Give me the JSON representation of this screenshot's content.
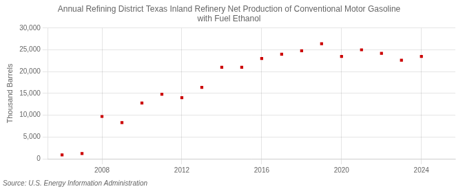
{
  "chart_data": {
    "type": "scatter",
    "title": "Annual Refining District Texas Inland Refinery Net Production of Conventional Motor Gasoline\nwith Fuel Ethanol",
    "ylabel": "Thousand Barrels",
    "source": "Source: U.S. Energy Information Administration",
    "x": [
      2006,
      2007,
      2008,
      2009,
      2010,
      2011,
      2012,
      2013,
      2014,
      2015,
      2016,
      2017,
      2018,
      2019,
      2020,
      2021,
      2022,
      2023,
      2024
    ],
    "values": [
      900,
      1200,
      9700,
      8300,
      12800,
      14800,
      14000,
      16400,
      21000,
      21000,
      23000,
      24000,
      24800,
      26400,
      23500,
      25000,
      24200,
      22600,
      23500
    ],
    "color": "#cc0000",
    "marker": "square",
    "xlim": [
      2005.3,
      2025.7
    ],
    "xticks": [
      2008,
      2012,
      2016,
      2020,
      2024
    ],
    "ylim": [
      0,
      30000
    ],
    "yticks": [
      0,
      {
        "value": 5000,
        "label": "5,000"
      },
      {
        "value": 10000,
        "label": "10,000"
      },
      {
        "value": 15000,
        "label": "15,000"
      },
      {
        "value": 20000,
        "label": "20,000"
      },
      {
        "value": 25000,
        "label": "25,000"
      },
      {
        "value": 30000,
        "label": "30,000"
      }
    ],
    "grid": true
  }
}
